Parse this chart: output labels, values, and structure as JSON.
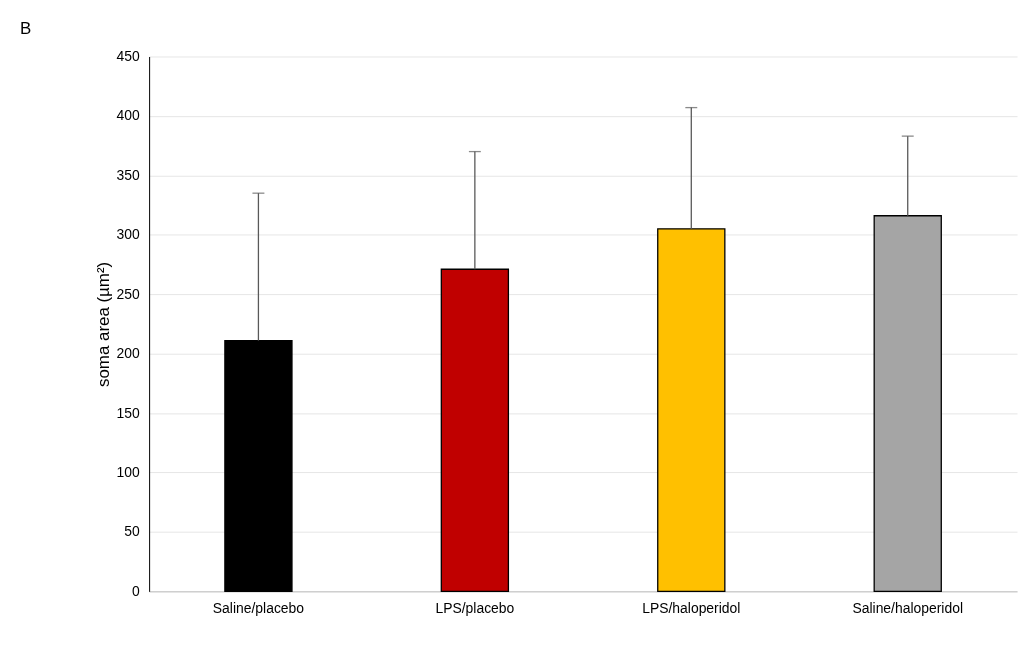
{
  "chart_data": {
    "type": "bar",
    "categories": [
      "Saline/placebo",
      "LPS/placebo",
      "LPS/haloperidol",
      "Saline/haloperidol"
    ],
    "values": [
      211,
      271,
      305,
      316
    ],
    "colors": [
      "#000000",
      "#c00000",
      "#ffc000",
      "#a5a5a5"
    ],
    "errors": [
      [
        211,
        335
      ],
      [
        271,
        370
      ],
      [
        305,
        407
      ],
      [
        316,
        383
      ]
    ],
    "ylabel": "soma area (µm²)",
    "ylim": [
      0,
      450
    ],
    "yticks": [
      0,
      50,
      100,
      150,
      200,
      250,
      300,
      350,
      400,
      450
    ],
    "grid": "y",
    "annotations": [
      "B"
    ]
  }
}
